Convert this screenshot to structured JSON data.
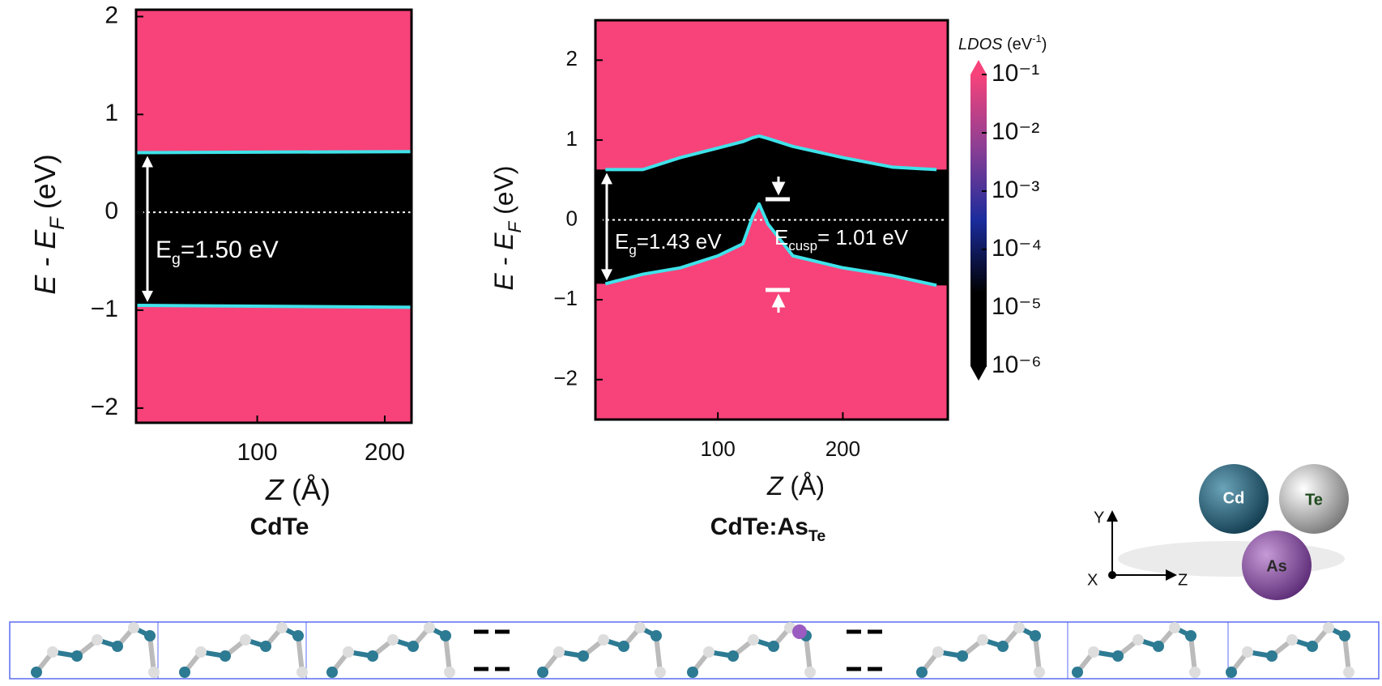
{
  "chart_data": [
    {
      "type": "line",
      "title": "CdTe",
      "xlabel": [
        "Z",
        " (Å)"
      ],
      "ylabel": [
        "E - E",
        "F",
        " (eV)"
      ],
      "x": [
        5,
        221
      ],
      "series": [
        {
          "color": "#3fe3ea",
          "values": [
            0.61,
            0.62
          ]
        },
        {
          "color": "#3fe3ea",
          "values": [
            -0.95,
            -0.97
          ]
        }
      ],
      "reference_line": 0,
      "annotation": [
        "E",
        "g",
        "=1.50 eV"
      ],
      "xlim": [
        5,
        221
      ],
      "ylim": [
        -2.15,
        2.07
      ],
      "xticks": [
        100,
        200
      ],
      "yticks": [
        {
          "value": -2,
          "label": "−2"
        },
        {
          "value": -1,
          "label": "−1"
        },
        0,
        1,
        2
      ]
    },
    {
      "type": "line",
      "title": [
        "CdTe:As",
        "Te"
      ],
      "xlabel": [
        "Z",
        " (Å)"
      ],
      "ylabel": [
        "E - E",
        "F",
        " (eV)"
      ],
      "x": [
        10,
        40,
        70,
        100,
        120,
        128,
        133,
        140,
        160,
        200,
        240,
        275
      ],
      "series": [
        {
          "color": "#3fe3ea",
          "values": [
            0.63,
            0.63,
            0.78,
            0.9,
            0.98,
            1.03,
            1.05,
            1.02,
            0.92,
            0.78,
            0.66,
            0.63
          ]
        },
        {
          "color": "#3fe3ea",
          "values": [
            -0.8,
            -0.68,
            -0.6,
            -0.45,
            -0.3,
            0.05,
            0.2,
            -0.05,
            -0.45,
            -0.6,
            -0.7,
            -0.82
          ]
        }
      ],
      "reference_line": 0,
      "annotation": [
        "E",
        "g",
        "=1.43 eV"
      ],
      "annotation2": [
        "E",
        "cusp",
        "= 1.01 eV"
      ],
      "xlim": [
        2,
        284
      ],
      "ylim": [
        -2.5,
        2.5
      ],
      "xticks": [
        100,
        200
      ],
      "yticks": [
        {
          "value": -2,
          "label": "−2"
        },
        {
          "value": -1,
          "label": "−1"
        },
        0,
        1,
        2
      ],
      "colorbar": {
        "label": [
          "LDOS",
          " (eV",
          "-1",
          ")"
        ],
        "log": true,
        "lim": [
          1e-06,
          0.1
        ],
        "colors": [
          "#000000",
          "#000000",
          "#1b2c9c",
          "#8c3f94",
          "#f7437a"
        ],
        "ticks": [
          {
            "value": 0.1,
            "label": "10⁻¹"
          },
          {
            "value": 0.01,
            "label": "10⁻²"
          },
          {
            "value": 0.001,
            "label": "10⁻³"
          },
          {
            "value": 0.0001,
            "label": "10⁻⁴"
          },
          {
            "value": 1e-05,
            "label": "10⁻⁵"
          },
          {
            "value": 1e-06,
            "label": "10⁻⁶"
          }
        ]
      }
    }
  ],
  "atoms": [
    "Cd",
    "Te",
    "As"
  ],
  "axes_triad": [
    "Y",
    "X",
    "Z"
  ]
}
